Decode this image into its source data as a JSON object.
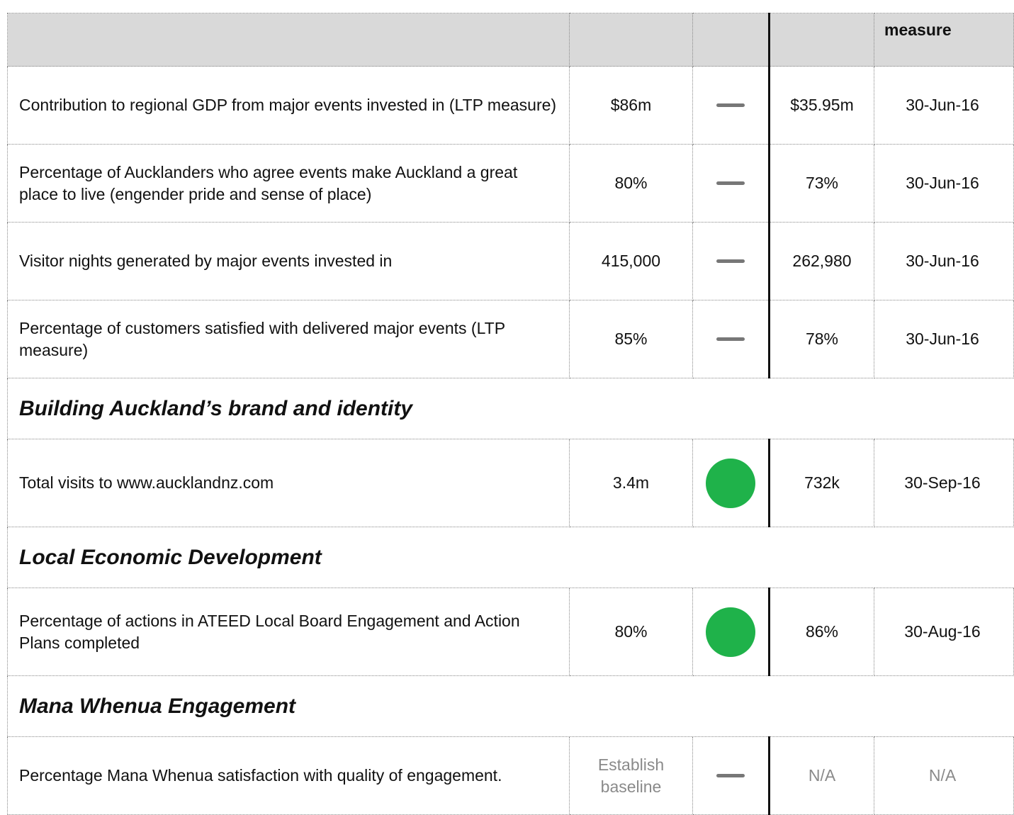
{
  "table": {
    "header": {
      "last": "measure"
    },
    "rows": [
      {
        "cells": [
          "Contribution to regional GDP  from major events invested in (LTP measure)",
          "$86m",
          "$35.95m",
          "30-Jun-16"
        ],
        "status": "dash",
        "height": 110
      },
      {
        "cells": [
          "Percentage of Aucklanders who agree events make Auckland a great place to live (engender pride and sense of place)",
          "80%",
          "73%",
          "30-Jun-16"
        ],
        "status": "dash",
        "height": 110
      },
      {
        "cells": [
          "Visitor nights generated by major events invested in",
          "415,000",
          "262,980",
          "30-Jun-16"
        ],
        "status": "dash",
        "height": 110
      },
      {
        "cells": [
          "Percentage of customers satisfied with delivered major events (LTP measure)",
          "85%",
          "78%",
          "30-Jun-16"
        ],
        "status": "dash",
        "height": 110
      },
      {
        "section": "Building Auckland’s brand and identity"
      },
      {
        "cells": [
          "Total visits to www.aucklandnz.com",
          "3.4m",
          "732k",
          "30-Sep-16"
        ],
        "status": "circle",
        "height": 124
      },
      {
        "section": "Local Economic Development"
      },
      {
        "cells": [
          "Percentage of actions in ATEED Local Board Engagement and Action Plans completed",
          "80%",
          "86%",
          "30-Aug-16"
        ],
        "status": "circle",
        "height": 124
      },
      {
        "section": "Mana Whenua Engagement"
      },
      {
        "cells": [
          "Percentage Mana Whenua satisfaction with quality of engagement.",
          "Establish baseline",
          "N/A",
          "N/A"
        ],
        "status": "dash",
        "muted": true,
        "height": 110
      }
    ]
  }
}
